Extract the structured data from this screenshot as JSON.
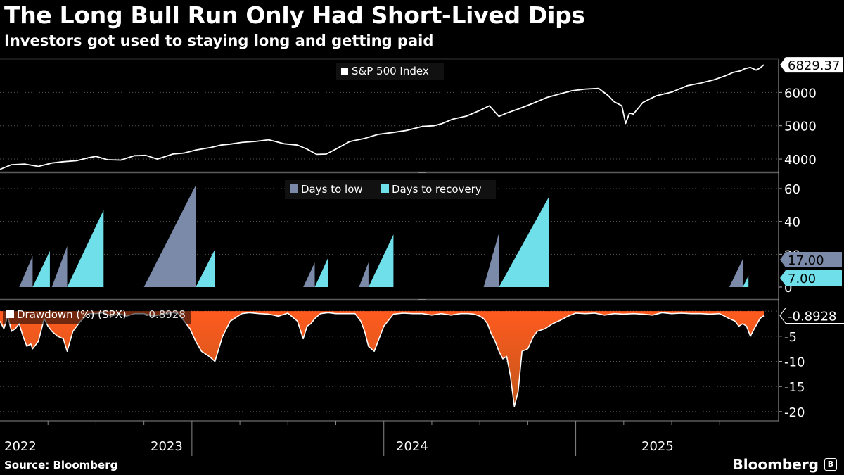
{
  "title": "The Long Bull Run Only Had Short-Lived Dips",
  "subtitle": "Investors got used to staying long and getting paid",
  "source": "Source: Bloomberg",
  "brand": "Bloomberg",
  "colors": {
    "background": "#000000",
    "line": "#ffffff",
    "days_to_low": "#7a8aa8",
    "days_to_recovery": "#6fe0ea",
    "drawdown_top": "#ff5a1f",
    "drawdown_bottom": "#c2571a"
  },
  "x_axis": {
    "tick_labels": [
      "2022",
      "2023",
      "2024",
      "2025"
    ],
    "range": [
      2022.0,
      2025.98
    ]
  },
  "chart_data": [
    {
      "type": "line",
      "legend": [
        "S&P 500 Index"
      ],
      "last_value_label": "6829.37",
      "yticks": [
        "4000",
        "5000",
        "6000"
      ],
      "ylim": [
        3600,
        7000
      ],
      "series": [
        {
          "name": "S&P 500 Index",
          "x": [
            2022.0,
            2022.06,
            2022.13,
            2022.2,
            2022.27,
            2022.33,
            2022.4,
            2022.46,
            2022.5,
            2022.56,
            2022.63,
            2022.7,
            2022.76,
            2022.82,
            2022.9,
            2022.96,
            2023.02,
            2023.1,
            2023.15,
            2023.2,
            2023.26,
            2023.33,
            2023.4,
            2023.48,
            2023.55,
            2023.6,
            2023.65,
            2023.7,
            2023.75,
            2023.82,
            2023.85,
            2023.9,
            2023.97,
            2024.05,
            2024.12,
            2024.2,
            2024.26,
            2024.3,
            2024.36,
            2024.43,
            2024.5,
            2024.55,
            2024.6,
            2024.64,
            2024.7,
            2024.78,
            2024.85,
            2024.92,
            2024.98,
            2025.05,
            2025.12,
            2025.17,
            2025.2,
            2025.24,
            2025.26,
            2025.28,
            2025.3,
            2025.35,
            2025.42,
            2025.5,
            2025.58,
            2025.65,
            2025.72,
            2025.78,
            2025.82,
            2025.86,
            2025.88,
            2025.91,
            2025.94,
            2025.96,
            2025.98
          ],
          "y": [
            3690,
            3830,
            3850,
            3780,
            3880,
            3920,
            3950,
            4040,
            4080,
            3980,
            3970,
            4100,
            4110,
            4000,
            4150,
            4180,
            4270,
            4350,
            4420,
            4450,
            4500,
            4530,
            4580,
            4460,
            4420,
            4300,
            4140,
            4150,
            4300,
            4520,
            4560,
            4620,
            4740,
            4800,
            4860,
            4980,
            5000,
            5060,
            5200,
            5290,
            5460,
            5600,
            5280,
            5380,
            5500,
            5680,
            5850,
            5960,
            6050,
            6100,
            6120,
            5900,
            5720,
            5600,
            5070,
            5380,
            5350,
            5700,
            5900,
            6010,
            6200,
            6280,
            6380,
            6500,
            6600,
            6650,
            6710,
            6750,
            6670,
            6730,
            6829
          ]
        }
      ]
    },
    {
      "type": "area",
      "legend": [
        "Days to low",
        "Days to recovery"
      ],
      "value_labels": [
        "17.00",
        "7.00"
      ],
      "yticks": [
        "0",
        "20",
        "40",
        "60"
      ],
      "ylim": [
        0,
        66
      ],
      "series": [
        {
          "name": "Days to low",
          "segments": [
            [
              2022.1,
              2022.17,
              19
            ],
            [
              2022.27,
              2022.35,
              25
            ],
            [
              2022.75,
              2023.02,
              62
            ],
            [
              2023.58,
              2023.64,
              15
            ],
            [
              2023.87,
              2023.92,
              15
            ],
            [
              2024.52,
              2024.6,
              33
            ],
            [
              2025.8,
              2025.87,
              17
            ]
          ]
        },
        {
          "name": "Days to recovery",
          "segments": [
            [
              2022.17,
              2022.26,
              22
            ],
            [
              2022.35,
              2022.54,
              47
            ],
            [
              2023.02,
              2023.12,
              23
            ],
            [
              2023.64,
              2023.71,
              18
            ],
            [
              2023.92,
              2024.05,
              32
            ],
            [
              2024.6,
              2024.86,
              55
            ],
            [
              2025.87,
              2025.9,
              7
            ]
          ]
        }
      ]
    },
    {
      "type": "area",
      "legend": [
        "Drawdown (%) (SPX)"
      ],
      "legend_value": "-0.8928",
      "last_value_label": "-0.8928",
      "yticks": [
        "-5",
        "-10",
        "-15",
        "-20"
      ],
      "ylim": [
        -21,
        1
      ],
      "series": [
        {
          "name": "Drawdown (%) (SPX)",
          "x": [
            2022.0,
            2022.02,
            2022.04,
            2022.06,
            2022.08,
            2022.1,
            2022.12,
            2022.14,
            2022.16,
            2022.17,
            2022.2,
            2022.23,
            2022.25,
            2022.27,
            2022.3,
            2022.33,
            2022.35,
            2022.38,
            2022.42,
            2022.46,
            2022.5,
            2022.54,
            2022.58,
            2022.62,
            2022.66,
            2022.7,
            2022.75,
            2022.8,
            2022.86,
            2022.9,
            2022.93,
            2022.96,
            2022.99,
            2023.02,
            2023.05,
            2023.09,
            2023.12,
            2023.16,
            2023.2,
            2023.26,
            2023.3,
            2023.35,
            2023.4,
            2023.45,
            2023.5,
            2023.55,
            2023.58,
            2023.6,
            2023.62,
            2023.64,
            2023.67,
            2023.71,
            2023.75,
            2023.8,
            2023.85,
            2023.88,
            2023.9,
            2023.92,
            2023.95,
            2024.0,
            2024.05,
            2024.1,
            2024.15,
            2024.2,
            2024.25,
            2024.3,
            2024.35,
            2024.4,
            2024.44,
            2024.47,
            2024.5,
            2024.52,
            2024.54,
            2024.56,
            2024.58,
            2024.6,
            2024.62,
            2024.64,
            2024.66,
            2024.68,
            2024.7,
            2024.72,
            2024.75,
            2024.78,
            2024.8,
            2024.84,
            2024.88,
            2024.92,
            2024.96,
            2025.0,
            2025.05,
            2025.1,
            2025.15,
            2025.2,
            2025.25,
            2025.3,
            2025.35,
            2025.4,
            2025.45,
            2025.5,
            2025.55,
            2025.6,
            2025.65,
            2025.7,
            2025.75,
            2025.8,
            2025.83,
            2025.85,
            2025.87,
            2025.89,
            2025.91,
            2025.93,
            2025.96,
            2025.98
          ],
          "y": [
            -2,
            -3.5,
            -1,
            -4,
            -3.5,
            -2.5,
            -5,
            -7,
            -6.5,
            -7.5,
            -6,
            -1.5,
            -3,
            -4,
            -5,
            -5.5,
            -8,
            -4,
            -2,
            -0.5,
            -0.5,
            -0.3,
            -1,
            -0.5,
            -1,
            -0.5,
            -0.5,
            -1,
            -0.5,
            -0.3,
            -0.5,
            -2,
            -3.5,
            -6,
            -8,
            -9,
            -10,
            -5,
            -2,
            -0.5,
            -0.3,
            -0.5,
            -0.6,
            -1,
            -0.4,
            -2,
            -5.5,
            -3,
            -2.5,
            -1.5,
            -0.5,
            -0.3,
            -0.5,
            -0.5,
            -0.5,
            -2,
            -4,
            -7,
            -8,
            -3,
            -0.6,
            -0.4,
            -0.5,
            -0.5,
            -0.8,
            -0.5,
            -0.8,
            -0.5,
            -0.5,
            -0.6,
            -1,
            -1.5,
            -2.5,
            -4.5,
            -6,
            -8,
            -9.5,
            -9,
            -13,
            -19,
            -16,
            -8,
            -7.5,
            -5,
            -4,
            -3.5,
            -2.5,
            -1.8,
            -1,
            -0.4,
            -0.5,
            -0.4,
            -0.8,
            -0.5,
            -0.6,
            -0.5,
            -0.6,
            -0.8,
            -0.3,
            -0.5,
            -0.4,
            -0.5,
            -0.5,
            -0.6,
            -0.5,
            -1.5,
            -2,
            -3,
            -2.5,
            -3,
            -5,
            -3.5,
            -1.5,
            -0.9
          ]
        }
      ]
    }
  ]
}
